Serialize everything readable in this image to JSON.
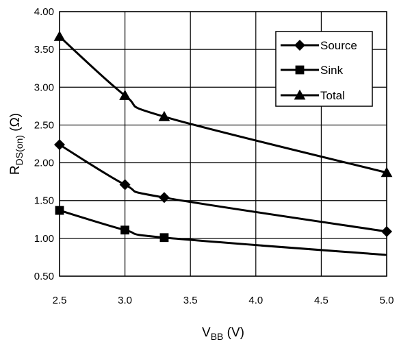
{
  "chart_data": {
    "type": "line",
    "xlabel": "V",
    "xlabel_sub": "BB",
    "xlabel_unit": " (V)",
    "ylabel": "R",
    "ylabel_sub": "DS(on)",
    "ylabel_unit": " (Ω)",
    "xlim": [
      2.5,
      5.0
    ],
    "ylim": [
      0.5,
      4.0
    ],
    "x_ticks": [
      "2.5",
      "3.0",
      "3.5",
      "4.0",
      "4.5",
      "5.0"
    ],
    "y_ticks": [
      "0.50",
      "1.00",
      "1.50",
      "2.00",
      "2.50",
      "3.00",
      "3.50",
      "4.00"
    ],
    "grid": true,
    "legend_position": "top-right",
    "series": [
      {
        "name": "Source",
        "marker": "diamond",
        "x": [
          2.5,
          3.0,
          3.3,
          5.0
        ],
        "y": [
          2.24,
          1.71,
          1.54,
          1.09
        ],
        "marker_x": [
          2.5,
          3.0,
          3.3,
          5.0
        ],
        "marker_y": [
          2.24,
          1.71,
          1.54,
          1.09
        ]
      },
      {
        "name": "Sink",
        "marker": "square",
        "x": [
          2.5,
          3.0,
          3.3,
          5.0
        ],
        "y": [
          1.37,
          1.11,
          1.01,
          0.78
        ],
        "marker_x": [
          2.5,
          3.0,
          3.3
        ],
        "marker_y": [
          1.37,
          1.11,
          1.01
        ]
      },
      {
        "name": "Total",
        "marker": "triangle",
        "x": [
          2.5,
          3.0,
          3.3,
          5.0
        ],
        "y": [
          3.67,
          2.89,
          2.61,
          1.87
        ],
        "marker_x": [
          2.5,
          3.0,
          3.3,
          5.0
        ],
        "marker_y": [
          3.67,
          2.89,
          2.61,
          1.87
        ]
      }
    ]
  }
}
